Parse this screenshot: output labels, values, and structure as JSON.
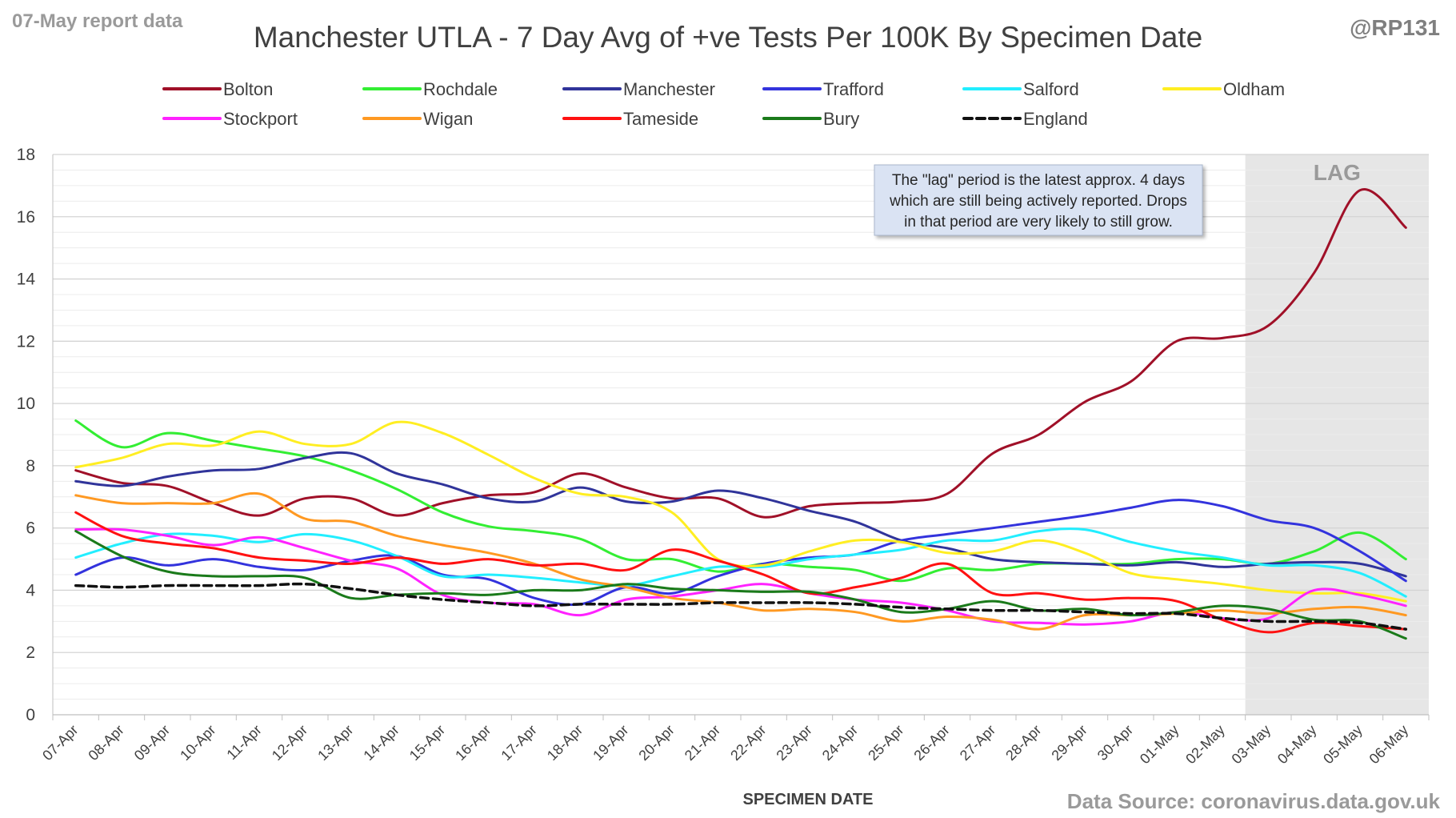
{
  "header": {
    "report_label": "07-May report data",
    "handle": "@RP131"
  },
  "footer": {
    "source": "Data Source: coronavirus.data.gov.uk"
  },
  "annotation": {
    "lag_label": "LAG",
    "note_lines": [
      "The \"lag\" period is the latest approx. 4 days",
      "which are still being actively reported.  Drops",
      "in that period are very likely to still grow."
    ]
  },
  "chart_data": {
    "type": "line",
    "title": "Manchester UTLA - 7 Day Avg of +ve Tests Per 100K By Specimen Date",
    "xlabel": "SPECIMEN DATE",
    "ylabel": "",
    "ylim": [
      0,
      18
    ],
    "yticks": [
      0,
      2,
      4,
      6,
      8,
      10,
      12,
      14,
      16,
      18
    ],
    "grid": true,
    "legend_position": "top",
    "lag_period": [
      "03-May",
      "06-May"
    ],
    "categories": [
      "07-Apr",
      "08-Apr",
      "09-Apr",
      "10-Apr",
      "11-Apr",
      "12-Apr",
      "13-Apr",
      "14-Apr",
      "15-Apr",
      "16-Apr",
      "17-Apr",
      "18-Apr",
      "19-Apr",
      "20-Apr",
      "21-Apr",
      "22-Apr",
      "23-Apr",
      "24-Apr",
      "25-Apr",
      "26-Apr",
      "27-Apr",
      "28-Apr",
      "29-Apr",
      "30-Apr",
      "01-May",
      "02-May",
      "03-May",
      "04-May",
      "05-May",
      "06-May"
    ],
    "series": [
      {
        "name": "Bolton",
        "color": "#a01028",
        "dashed": false,
        "values": [
          7.85,
          7.45,
          7.35,
          6.8,
          6.4,
          6.95,
          6.95,
          6.4,
          6.8,
          7.05,
          7.15,
          7.75,
          7.3,
          6.95,
          6.95,
          6.35,
          6.7,
          6.8,
          6.85,
          7.1,
          8.4,
          9.0,
          10.05,
          10.7,
          12.0,
          12.1,
          12.5,
          14.2,
          16.85,
          15.65
        ]
      },
      {
        "name": "Rochdale",
        "color": "#33ee33",
        "dashed": false,
        "values": [
          9.45,
          8.6,
          9.05,
          8.8,
          8.55,
          8.3,
          7.85,
          7.25,
          6.5,
          6.05,
          5.9,
          5.65,
          5.0,
          5.0,
          4.6,
          4.85,
          4.75,
          4.65,
          4.3,
          4.7,
          4.65,
          4.85,
          4.85,
          4.85,
          5.0,
          5.0,
          4.85,
          5.25,
          5.85,
          5.0
        ]
      },
      {
        "name": "Manchester",
        "color": "#30349a",
        "dashed": false,
        "values": [
          7.5,
          7.35,
          7.65,
          7.85,
          7.9,
          8.25,
          8.4,
          7.75,
          7.4,
          6.95,
          6.85,
          7.3,
          6.85,
          6.85,
          7.2,
          6.95,
          6.55,
          6.2,
          5.6,
          5.35,
          5.0,
          4.9,
          4.85,
          4.8,
          4.9,
          4.75,
          4.85,
          4.9,
          4.85,
          4.45
        ]
      },
      {
        "name": "Trafford",
        "color": "#3333dd",
        "dashed": false,
        "values": [
          4.5,
          5.05,
          4.8,
          5.0,
          4.75,
          4.65,
          4.95,
          5.1,
          4.5,
          4.35,
          3.75,
          3.55,
          4.1,
          3.9,
          4.45,
          4.85,
          5.05,
          5.15,
          5.6,
          5.8,
          6.0,
          6.2,
          6.4,
          6.65,
          6.9,
          6.7,
          6.25,
          6.0,
          5.25,
          4.3
        ]
      },
      {
        "name": "Salford",
        "color": "#22eeff",
        "dashed": false,
        "values": [
          5.05,
          5.5,
          5.8,
          5.75,
          5.55,
          5.8,
          5.6,
          5.1,
          4.45,
          4.5,
          4.4,
          4.25,
          4.15,
          4.45,
          4.75,
          4.75,
          5.0,
          5.15,
          5.3,
          5.6,
          5.6,
          5.9,
          5.95,
          5.55,
          5.25,
          5.05,
          4.8,
          4.8,
          4.55,
          3.8
        ]
      },
      {
        "name": "Oldham",
        "color": "#ffee22",
        "dashed": false,
        "values": [
          7.95,
          8.25,
          8.7,
          8.65,
          9.1,
          8.7,
          8.7,
          9.4,
          9.05,
          8.35,
          7.6,
          7.1,
          7.0,
          6.5,
          5.0,
          4.8,
          5.25,
          5.6,
          5.55,
          5.2,
          5.25,
          5.6,
          5.2,
          4.55,
          4.35,
          4.2,
          4.0,
          3.9,
          3.9,
          3.65
        ]
      },
      {
        "name": "Stockport",
        "color": "#ff22ff",
        "dashed": false,
        "values": [
          5.95,
          5.95,
          5.75,
          5.45,
          5.7,
          5.35,
          4.95,
          4.7,
          3.85,
          3.6,
          3.55,
          3.2,
          3.7,
          3.8,
          4.0,
          4.2,
          3.9,
          3.7,
          3.6,
          3.35,
          3.0,
          2.95,
          2.9,
          3.0,
          3.3,
          3.1,
          3.1,
          4.0,
          3.85,
          3.5
        ]
      },
      {
        "name": "Wigan",
        "color": "#ff9922",
        "dashed": false,
        "values": [
          7.05,
          6.8,
          6.8,
          6.8,
          7.1,
          6.3,
          6.2,
          5.75,
          5.45,
          5.2,
          4.85,
          4.35,
          4.1,
          3.75,
          3.6,
          3.35,
          3.4,
          3.3,
          3.0,
          3.15,
          3.05,
          2.75,
          3.2,
          3.2,
          3.25,
          3.35,
          3.25,
          3.4,
          3.45,
          3.2
        ]
      },
      {
        "name": "Tameside",
        "color": "#ff1111",
        "dashed": false,
        "values": [
          6.5,
          5.75,
          5.5,
          5.35,
          5.05,
          4.95,
          4.85,
          5.05,
          4.85,
          5.0,
          4.8,
          4.85,
          4.65,
          5.3,
          4.95,
          4.5,
          3.9,
          4.1,
          4.4,
          4.85,
          3.9,
          3.9,
          3.7,
          3.75,
          3.65,
          3.05,
          2.65,
          2.95,
          2.85,
          2.75
        ]
      },
      {
        "name": "Bury",
        "color": "#1a7a1a",
        "dashed": false,
        "values": [
          5.9,
          5.1,
          4.6,
          4.45,
          4.45,
          4.4,
          3.75,
          3.85,
          3.9,
          3.85,
          4.0,
          4.0,
          4.2,
          4.05,
          4.0,
          3.95,
          3.95,
          3.7,
          3.3,
          3.4,
          3.65,
          3.35,
          3.4,
          3.2,
          3.3,
          3.5,
          3.4,
          3.05,
          3.0,
          2.45
        ]
      },
      {
        "name": "England",
        "color": "#111111",
        "dashed": true,
        "values": [
          4.15,
          4.1,
          4.15,
          4.15,
          4.15,
          4.2,
          4.05,
          3.85,
          3.7,
          3.6,
          3.5,
          3.55,
          3.55,
          3.55,
          3.6,
          3.6,
          3.6,
          3.55,
          3.45,
          3.4,
          3.35,
          3.35,
          3.3,
          3.25,
          3.25,
          3.1,
          3.0,
          3.0,
          2.95,
          2.75
        ]
      }
    ]
  }
}
